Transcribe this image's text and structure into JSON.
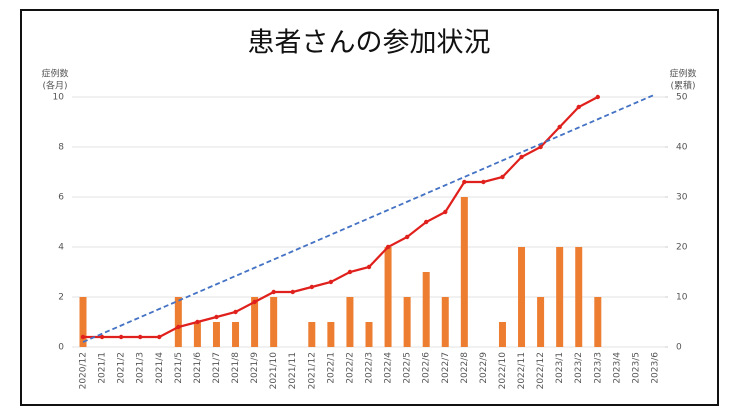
{
  "chart_data": {
    "type": "bar_line",
    "title": "患者さんの参加状況",
    "y_label": [
      "症例数",
      "(各月)"
    ],
    "y2_label": [
      "症例数",
      "(累積)"
    ],
    "categories": [
      "2020/12",
      "2021/1",
      "2021/2",
      "2021/3",
      "2021/4",
      "2021/5",
      "2021/6",
      "2021/7",
      "2021/8",
      "2021/9",
      "2021/10",
      "2021/11",
      "2021/12",
      "2022/1",
      "2022/2",
      "2022/3",
      "2022/4",
      "2022/5",
      "2022/6",
      "2022/7",
      "2022/8",
      "2022/9",
      "2022/10",
      "2022/11",
      "2022/12",
      "2023/1",
      "2023/2",
      "2023/3",
      "2023/4",
      "2023/5",
      "2023/6"
    ],
    "series": [
      {
        "type": "bar",
        "color": "#ed7d31",
        "values": [
          2,
          0,
          0,
          0,
          0,
          2,
          1,
          1,
          1,
          2,
          2,
          0,
          1,
          1,
          2,
          1,
          4,
          2,
          3,
          2,
          6,
          0,
          1,
          4,
          2,
          4,
          4,
          2,
          null,
          null,
          null
        ]
      },
      {
        "type": "line",
        "axis": "y2",
        "color": "#e0201c",
        "markers": true,
        "values": [
          2,
          2,
          2,
          2,
          2,
          4,
          5,
          6,
          7,
          9,
          11,
          11,
          12,
          13,
          15,
          16,
          20,
          22,
          25,
          27,
          33,
          33,
          34,
          38,
          40,
          44,
          48,
          50,
          null,
          null,
          null
        ]
      },
      {
        "type": "line",
        "axis": "y2",
        "color": "#4472c4",
        "dashed": true,
        "values": [
          1,
          2.65,
          4.3,
          5.95,
          7.6,
          9.25,
          10.9,
          12.55,
          14.2,
          15.85,
          17.5,
          19.15,
          20.8,
          22.45,
          24.1,
          25.75,
          27.4,
          29.05,
          30.7,
          32.35,
          34,
          35.65,
          37.3,
          38.95,
          40.6,
          42.25,
          43.9,
          45.55,
          47.2,
          48.85,
          50.5
        ]
      }
    ],
    "ylim": [
      0,
      10
    ],
    "yticks": [
      0,
      2,
      4,
      6,
      8,
      10
    ],
    "y2lim": [
      0,
      50
    ],
    "y2ticks": [
      0,
      10,
      20,
      30,
      40,
      50
    ],
    "grid": true
  }
}
